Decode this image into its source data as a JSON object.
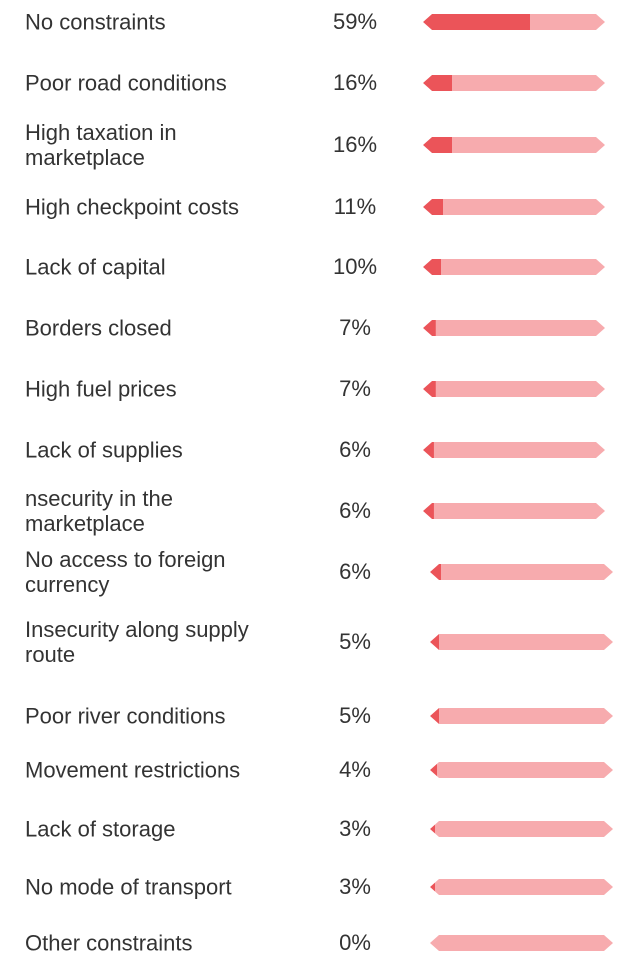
{
  "chart_data": {
    "type": "bar",
    "categories": [
      "No constraints",
      "Poor road conditions",
      "High taxation in marketplace",
      "High checkpoint costs",
      "Lack of capital",
      "Borders closed",
      "High fuel prices",
      "Lack of supplies",
      "nsecurity in the marketplace",
      "No access to foreign currency",
      "Insecurity along supply route",
      "Poor river conditions",
      "Movement restrictions",
      "Lack of storage",
      "No mode of transport",
      "Other constraints"
    ],
    "values": [
      59,
      16,
      16,
      11,
      10,
      7,
      7,
      6,
      6,
      6,
      5,
      5,
      4,
      3,
      3,
      0
    ],
    "value_labels": [
      "59%",
      "16%",
      "16%",
      "11%",
      "10%",
      "7%",
      "7%",
      "6%",
      "6%",
      "6%",
      "5%",
      "5%",
      "4%",
      "3%",
      "3%",
      "0%"
    ],
    "xlim": [
      0,
      100
    ],
    "color": "#eb5459",
    "track_color": "#f7abae"
  }
}
